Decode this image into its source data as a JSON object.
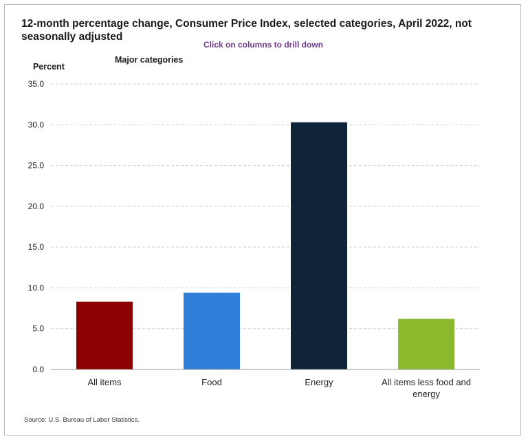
{
  "chart_data": {
    "type": "bar",
    "title": "12-month percentage change, Consumer Price Index, selected categories, April 2022, not seasonally adjusted",
    "subtitle": "Click on columns to drill down",
    "ylabel": "Percent",
    "xlabel": "Major categories",
    "ylim": [
      0,
      35
    ],
    "yticks": [
      "0.0",
      "5.0",
      "10.0",
      "15.0",
      "20.0",
      "25.0",
      "30.0",
      "35.0"
    ],
    "grid": true,
    "categories": [
      [
        "All items"
      ],
      [
        "Food"
      ],
      [
        "Energy"
      ],
      [
        "All items less food and",
        "energy"
      ]
    ],
    "values": [
      8.3,
      9.4,
      30.3,
      6.2
    ],
    "colors": [
      "#8b0000",
      "#2f7fd9",
      "#0f2339",
      "#8ab92d"
    ],
    "source": "Source: U.S. Bureau of Labor Statistics."
  }
}
